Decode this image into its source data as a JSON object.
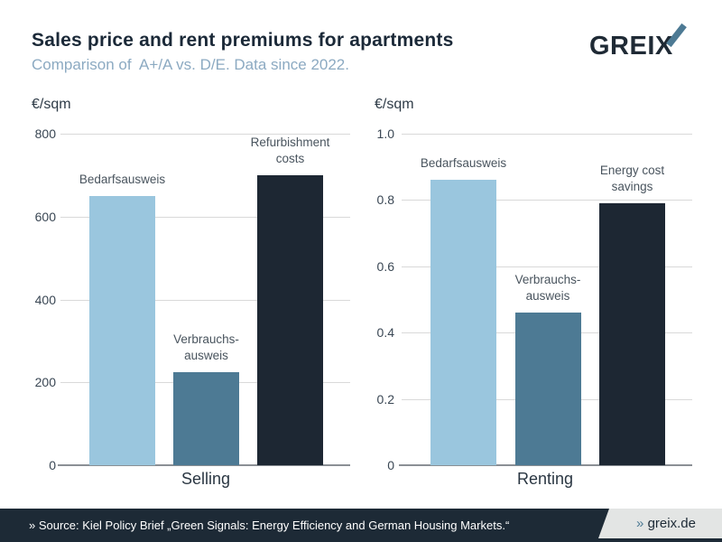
{
  "header": {
    "title": "Sales price and rent premiums for apartments",
    "subtitle": "Comparison of  A+/A vs. D/E. Data since 2022.",
    "logo": {
      "text": "GREIX"
    }
  },
  "colors": {
    "light_blue": "#9ac6de",
    "steel_blue": "#4d7a94",
    "dark_navy": "#1d2733",
    "subtitle_blue": "#8caac2",
    "footer_bg": "#1d2a36",
    "footer_gray": "#e3e5e4",
    "grid": "#d9d9d9",
    "axis": "#8b9095"
  },
  "chart_data": [
    {
      "type": "bar",
      "unit": "€/sqm",
      "xlabel": "Selling",
      "ylim": [
        0,
        800
      ],
      "yticks": [
        "800",
        "600",
        "400",
        "200",
        "0"
      ],
      "categories": [
        "Bedarfsausweis",
        "Verbrauchsausweis",
        "Refurbishment costs"
      ],
      "bars": [
        {
          "label": "Bedarfsausweis",
          "value": 650,
          "color_key": "light_blue"
        },
        {
          "label": "Verbrauchs-\nausweis",
          "value": 225,
          "color_key": "steel_blue"
        },
        {
          "label": "Refurbishment\ncosts",
          "value": 700,
          "color_key": "dark_navy"
        }
      ],
      "grid": true,
      "legend": "none"
    },
    {
      "type": "bar",
      "unit": "€/sqm",
      "xlabel": "Renting",
      "ylim": [
        0,
        1.0
      ],
      "yticks": [
        "1.0",
        "0.8",
        "0.6",
        "0.4",
        "0.2",
        "0"
      ],
      "categories": [
        "Bedarfsausweis",
        "Verbrauchsausweis",
        "Energy cost savings"
      ],
      "bars": [
        {
          "label": "Bedarfsausweis",
          "value": 0.86,
          "color_key": "light_blue"
        },
        {
          "label": "Verbrauchs-\nausweis",
          "value": 0.46,
          "color_key": "steel_blue"
        },
        {
          "label": "Energy cost\nsavings",
          "value": 0.79,
          "color_key": "dark_navy"
        }
      ],
      "grid": true,
      "legend": "none"
    }
  ],
  "footer": {
    "source": "» Source: Kiel Policy Brief „Green Signals: Energy Efficiency and German Housing Markets.“",
    "site_prefix": "»",
    "site": "greix.de"
  }
}
